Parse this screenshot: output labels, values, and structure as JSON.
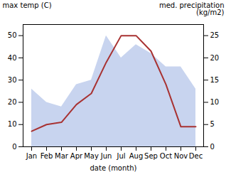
{
  "chart_data": {
    "type": "line",
    "xlabel": "date (month)",
    "ylabel": "max temp (C)",
    "y2label": "med. precipitation\n(kg/m2)",
    "categories": [
      "Jan",
      "Feb",
      "Mar",
      "Apr",
      "May",
      "Jun",
      "Jul",
      "Aug",
      "Sep",
      "Oct",
      "Nov",
      "Dec"
    ],
    "series": [
      {
        "type": "area",
        "axis": "y2",
        "color": "#c8d4ef",
        "values": [
          13,
          10,
          9,
          14,
          15,
          25,
          20,
          23,
          21,
          18,
          18,
          13
        ]
      },
      {
        "type": "line",
        "color": "#a83232",
        "values": [
          7,
          10,
          11,
          19,
          24,
          38,
          50,
          50,
          43,
          28,
          9,
          9
        ]
      }
    ],
    "ylim": [
      0,
      55
    ],
    "yticks": [
      0,
      10,
      20,
      30,
      40,
      50
    ],
    "y2lim": [
      0,
      27.5
    ],
    "y2ticks": [
      0,
      5,
      10,
      15,
      20,
      25
    ],
    "grid": false
  }
}
